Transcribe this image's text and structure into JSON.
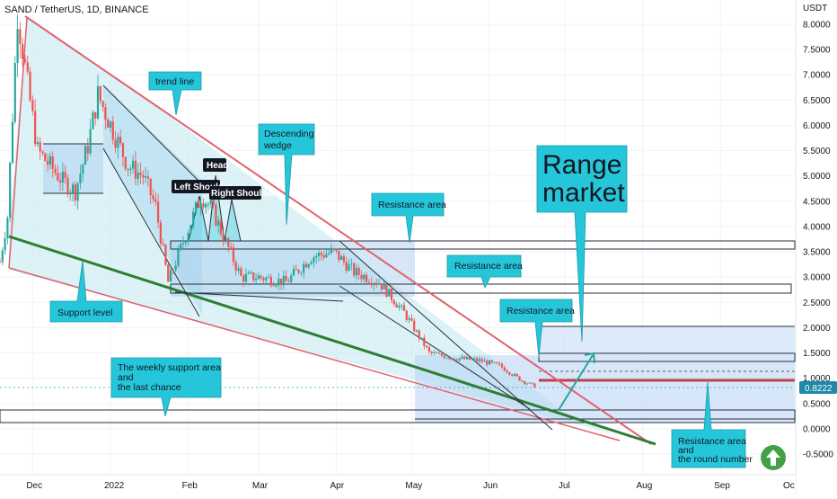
{
  "header": {
    "symbol": "SAND / TetherUS, 1D, BINANCE"
  },
  "price_axis": {
    "currency": "USDT",
    "ticks": [
      "8.0000",
      "7.5000",
      "7.0000",
      "6.5000",
      "6.0000",
      "5.5000",
      "5.0000",
      "4.5000",
      "4.0000",
      "3.5000",
      "3.0000",
      "2.5000",
      "2.0000",
      "1.5000",
      "1.0000",
      "0.5000",
      "0.0000",
      "-0.5000"
    ],
    "last_price": "0.8222"
  },
  "time_axis": {
    "ticks": [
      "Dec",
      "2022",
      "Feb",
      "Mar",
      "Apr",
      "May",
      "Jun",
      "Jul",
      "Aug",
      "Sep",
      "Oc"
    ]
  },
  "annotations": {
    "trend_line": "trend line",
    "descending_wedge": [
      "Descending",
      "wedge"
    ],
    "range_market": [
      "Range",
      "market"
    ],
    "resistance_1": "Resistance area",
    "resistance_2": "Resistance area",
    "resistance_3": "Resistance area",
    "support_level": "Support level",
    "weekly_support": [
      "The weekly support area",
      "and",
      "the last chance"
    ],
    "round_number": [
      "Resistance area",
      "and",
      "the round number"
    ],
    "head": "Head",
    "left_shoulder": "Left Shoulder",
    "right_shoulder": "Right Shoulder"
  },
  "colors": {
    "up": "#26a69a",
    "down": "#ef5350",
    "callout": "#26c6da",
    "trendline": "#e0626e",
    "support": "#2e7d32",
    "badge": "#1e88a8",
    "fab": "#43a047"
  },
  "chart_data": {
    "type": "candlestick",
    "title": "SAND / TetherUS, 1D, BINANCE",
    "ylim": [
      -0.5,
      8.0
    ],
    "y_unit": "USDT",
    "xlim": [
      "2021-11-18",
      "2022-10-01"
    ],
    "last_price": 0.8222,
    "close_path": [
      {
        "date": "2021-11-18",
        "close": 3.3
      },
      {
        "date": "2021-11-21",
        "close": 4.2
      },
      {
        "date": "2021-11-25",
        "close": 8.2
      },
      {
        "date": "2021-11-29",
        "close": 6.8
      },
      {
        "date": "2021-12-03",
        "close": 5.5
      },
      {
        "date": "2021-12-08",
        "close": 5.2
      },
      {
        "date": "2021-12-13",
        "close": 4.9
      },
      {
        "date": "2021-12-18",
        "close": 4.7
      },
      {
        "date": "2021-12-23",
        "close": 5.6
      },
      {
        "date": "2021-12-27",
        "close": 6.6
      },
      {
        "date": "2022-01-02",
        "close": 5.9
      },
      {
        "date": "2022-01-08",
        "close": 5.2
      },
      {
        "date": "2022-01-14",
        "close": 5.0
      },
      {
        "date": "2022-01-19",
        "close": 4.4
      },
      {
        "date": "2022-01-24",
        "close": 2.9
      },
      {
        "date": "2022-01-30",
        "close": 3.7
      },
      {
        "date": "2022-02-06",
        "close": 4.6
      },
      {
        "date": "2022-02-10",
        "close": 4.4
      },
      {
        "date": "2022-02-15",
        "close": 3.8
      },
      {
        "date": "2022-02-22",
        "close": 3.0
      },
      {
        "date": "2022-03-01",
        "close": 3.0
      },
      {
        "date": "2022-03-12",
        "close": 2.9
      },
      {
        "date": "2022-03-22",
        "close": 3.4
      },
      {
        "date": "2022-03-31",
        "close": 3.5
      },
      {
        "date": "2022-04-08",
        "close": 3.1
      },
      {
        "date": "2022-04-18",
        "close": 2.9
      },
      {
        "date": "2022-04-28",
        "close": 2.3
      },
      {
        "date": "2022-05-08",
        "close": 1.5
      },
      {
        "date": "2022-05-18",
        "close": 1.4
      },
      {
        "date": "2022-05-28",
        "close": 1.35
      },
      {
        "date": "2022-06-05",
        "close": 1.25
      },
      {
        "date": "2022-06-14",
        "close": 0.95
      },
      {
        "date": "2022-06-20",
        "close": 0.82
      }
    ],
    "horizontal_levels": [
      3.6,
      2.8,
      2.0,
      1.4,
      0.3
    ],
    "drawn_lines": [
      {
        "name": "trend line",
        "from": {
          "date": "2021-11-25",
          "price": 8.1
        },
        "to": {
          "date": "2022-07-25",
          "price": -0.3
        }
      },
      {
        "name": "Support level",
        "from": {
          "date": "2021-11-18",
          "price": 3.75
        },
        "to": {
          "date": "2022-07-30",
          "price": -0.3
        }
      },
      {
        "name": "lower support",
        "from": {
          "date": "2021-11-18",
          "price": 3.3
        },
        "to": {
          "date": "2022-07-20",
          "price": -0.3
        }
      }
    ],
    "projection": {
      "from": {
        "date": "2022-06-22",
        "price": 0.35
      },
      "to": {
        "date": "2022-07-08",
        "price": 1.55
      }
    }
  }
}
